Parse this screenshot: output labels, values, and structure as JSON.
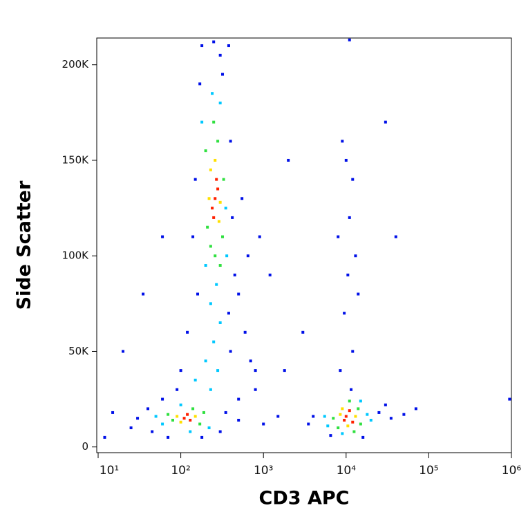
{
  "chart_data": {
    "type": "scatter",
    "x_label": "CD3 APC",
    "y_label": "Side Scatter",
    "x_log": true,
    "xlim": [
      10,
      1000000
    ],
    "ylim": [
      -3000,
      214000
    ],
    "xticks": [
      {
        "value": 10,
        "label": "10¹"
      },
      {
        "value": 100,
        "label": "10²"
      },
      {
        "value": 1000,
        "label": "10³"
      },
      {
        "value": 10000,
        "label": "10⁴"
      },
      {
        "value": 100000,
        "label": "10⁵"
      },
      {
        "value": 1000000,
        "label": "10⁶"
      }
    ],
    "yticks": [
      0,
      {
        "value": 50000,
        "label": "50K"
      },
      {
        "value": 100000,
        "label": "100K"
      },
      {
        "value": 150000,
        "label": "150K"
      },
      {
        "value": 200000,
        "label": "200K"
      }
    ],
    "series": [
      {
        "color": "#0010e8",
        "x": [
          300,
          250,
          320,
          170,
          400,
          150,
          420,
          140,
          450,
          500,
          380,
          160,
          600,
          400,
          120,
          100,
          700,
          800,
          500,
          90,
          60,
          40,
          30,
          25,
          45,
          70,
          180,
          300,
          350,
          500,
          1000,
          1500,
          800,
          650,
          550,
          900,
          1200,
          15,
          12,
          20,
          35,
          60,
          180,
          380,
          10000,
          12000,
          9000,
          11000,
          13000,
          10500,
          8000,
          14000,
          9500,
          12000,
          8500,
          11500,
          4000,
          3500,
          25000,
          35000,
          50000,
          70000,
          30000,
          6500,
          16000,
          40000,
          3000,
          2000,
          1800,
          30000,
          11000,
          950000
        ],
        "y": [
          205000,
          212000,
          195000,
          190000,
          160000,
          140000,
          120000,
          110000,
          90000,
          80000,
          70000,
          80000,
          60000,
          50000,
          60000,
          40000,
          45000,
          30000,
          25000,
          30000,
          25000,
          20000,
          15000,
          10000,
          8000,
          5000,
          5000,
          8000,
          18000,
          14000,
          12000,
          16000,
          40000,
          100000,
          130000,
          110000,
          90000,
          18000,
          5000,
          50000,
          80000,
          110000,
          210000,
          210000,
          150000,
          140000,
          160000,
          120000,
          100000,
          90000,
          110000,
          80000,
          70000,
          50000,
          40000,
          30000,
          16000,
          12000,
          18000,
          15000,
          17000,
          20000,
          22000,
          6000,
          5000,
          110000,
          60000,
          150000,
          40000,
          170000,
          213000,
          25000
        ]
      },
      {
        "color": "#00c8ff",
        "x": [
          180,
          350,
          240,
          300,
          200,
          360,
          270,
          230,
          300,
          250,
          200,
          280,
          150,
          230,
          60,
          220,
          50,
          130,
          100,
          5500,
          18000,
          6000,
          20000,
          9000,
          15000
        ],
        "y": [
          170000,
          125000,
          185000,
          180000,
          95000,
          100000,
          85000,
          75000,
          65000,
          55000,
          45000,
          40000,
          35000,
          30000,
          12000,
          10000,
          16000,
          8000,
          22000,
          16000,
          17000,
          11000,
          14000,
          7000,
          24000
        ]
      },
      {
        "color": "#30e040",
        "x": [
          200,
          320,
          280,
          230,
          260,
          330,
          210,
          250,
          300,
          80,
          170,
          140,
          70,
          190,
          7000,
          14000,
          15000,
          8000,
          11000,
          12500
        ],
        "y": [
          155000,
          110000,
          160000,
          105000,
          100000,
          140000,
          115000,
          170000,
          95000,
          14000,
          12000,
          20000,
          17000,
          18000,
          15000,
          20000,
          12000,
          10000,
          24000,
          8000
        ]
      },
      {
        "color": "#ffe000",
        "x": [
          230,
          290,
          260,
          220,
          300,
          100,
          150,
          90,
          9000,
          13000,
          10500,
          8500
        ],
        "y": [
          145000,
          118000,
          150000,
          130000,
          128000,
          13000,
          16000,
          16000,
          20000,
          16000,
          11000,
          17000
        ]
      },
      {
        "color": "#ff2000",
        "x": [
          260,
          240,
          280,
          250,
          270,
          110,
          130,
          120,
          10000,
          11000,
          9500,
          12000
        ],
        "y": [
          130000,
          125000,
          135000,
          120000,
          140000,
          15000,
          14000,
          17000,
          16000,
          19000,
          14000,
          13000
        ]
      }
    ]
  }
}
